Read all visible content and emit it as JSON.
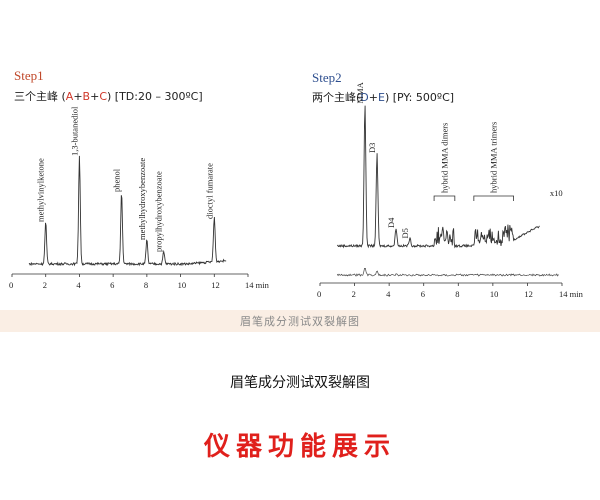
{
  "chart_data": [
    {
      "type": "line",
      "title": "Step1",
      "subtitle_prefix": "三个主峰 (",
      "subtitle_components": [
        "A",
        "B",
        "C"
      ],
      "subtitle_suffix": ") [TD:20 – 300ºC]",
      "xlabel": "min",
      "xlim": [
        0,
        14
      ],
      "xticks": [
        "0",
        "2",
        "4",
        "6",
        "8",
        "10",
        "12",
        "14 min"
      ],
      "peaks": [
        {
          "x": 2.0,
          "height": 0.28,
          "label": "methylvinylketone"
        },
        {
          "x": 4.0,
          "height": 0.72,
          "label": "1,3-butanediol"
        },
        {
          "x": 6.5,
          "height": 0.48,
          "label": "phenol"
        },
        {
          "x": 8.0,
          "height": 0.16,
          "label": "methylhydroxybenzoate"
        },
        {
          "x": 9.0,
          "height": 0.08,
          "label": "propylhydroxybenzoate"
        },
        {
          "x": 12.0,
          "height": 0.3,
          "label": "dioctyl fumarate"
        }
      ],
      "accent_colors": {
        "title": "#c0482a",
        "components": "#d0382a"
      }
    },
    {
      "type": "line",
      "title": "Step2",
      "subtitle_prefix": "两个主峰(",
      "subtitle_components": [
        "D",
        "E"
      ],
      "subtitle_suffix": ") [PY: 500ºC]",
      "xlabel": "min",
      "xlim": [
        0,
        14
      ],
      "xticks": [
        "0",
        "2",
        "4",
        "6",
        "8",
        "10",
        "12",
        "14 min"
      ],
      "peaks": [
        {
          "x": 2.6,
          "height": 0.95,
          "label": "MMA"
        },
        {
          "x": 3.3,
          "height": 0.62,
          "label": "D3"
        },
        {
          "x": 4.4,
          "height": 0.12,
          "label": "D4"
        },
        {
          "x": 5.2,
          "height": 0.05,
          "label": "D5"
        }
      ],
      "groups": [
        {
          "x_start": 6.6,
          "x_end": 7.8,
          "label": "hybrid MMA dimers"
        },
        {
          "x_start": 8.9,
          "x_end": 11.2,
          "label": "hybrid MMA trimers"
        }
      ],
      "inset_label": "x10",
      "accent_colors": {
        "title": "#2e4f8f",
        "components": "#2e4f8f"
      }
    }
  ],
  "banner_text": "眉笔成分测试双裂解图",
  "caption_text": "眉笔成分测试双裂解图",
  "headline_text": "仪器功能展示"
}
